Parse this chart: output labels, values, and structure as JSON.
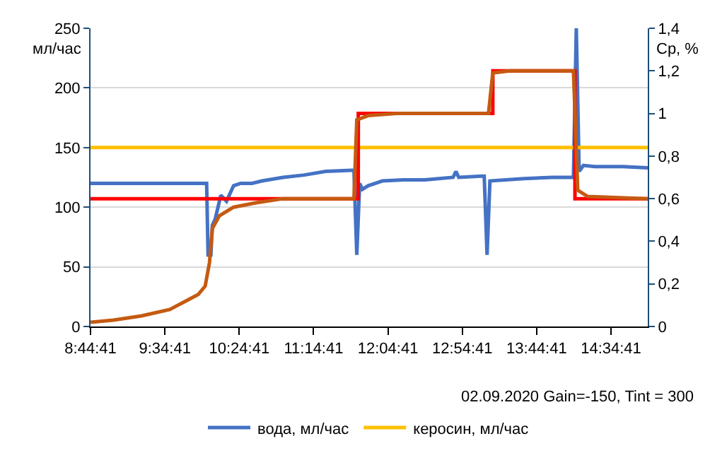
{
  "chart_data": {
    "type": "line",
    "ylabel": "мл/час",
    "y2label": "Cp, %",
    "annotations": [
      "02.09.2020 Gain=-150, Tint = 300"
    ],
    "xlim": [
      8.7447,
      14.99
    ],
    "xticks": [
      {
        "value": 8.7447,
        "label": "8:44:41"
      },
      {
        "value": 9.5781,
        "label": "9:34:41"
      },
      {
        "value": 10.4114,
        "label": "10:24:41"
      },
      {
        "value": 11.2447,
        "label": "11:14:41"
      },
      {
        "value": 12.0781,
        "label": "12:04:41"
      },
      {
        "value": 12.9114,
        "label": "12:54:41"
      },
      {
        "value": 13.7447,
        "label": "13:44:41"
      },
      {
        "value": 14.5781,
        "label": "14:34:41"
      }
    ],
    "ylim": [
      0,
      250
    ],
    "yticks": [
      0,
      50,
      100,
      150,
      200,
      250
    ],
    "y2lim": [
      0,
      1.4
    ],
    "y2ticks": [
      {
        "value": 0,
        "label": "0"
      },
      {
        "value": 0.2,
        "label": "0,2"
      },
      {
        "value": 0.4,
        "label": "0,4"
      },
      {
        "value": 0.6,
        "label": "0,6"
      },
      {
        "value": 0.8,
        "label": "0,8"
      },
      {
        "value": 1,
        "label": "1"
      },
      {
        "value": 1.2,
        "label": "1,2"
      },
      {
        "value": 1.4,
        "label": "1,4"
      }
    ],
    "grid": "y",
    "legend": "bottom",
    "marker": "none",
    "line_style": "solid",
    "series": [
      {
        "name": "вода, мл/час",
        "color": "#4472c4",
        "x": [
          8.745,
          10.046,
          10.062,
          10.094,
          10.11,
          10.142,
          10.205,
          10.269,
          10.348,
          10.427,
          10.554,
          10.666,
          10.903,
          11.142,
          11.38,
          11.665,
          11.697,
          11.729,
          11.761,
          11.792,
          11.856,
          12.015,
          12.253,
          12.491,
          12.808,
          12.84,
          12.872,
          13.126,
          13.157,
          13.189,
          13.221,
          13.602,
          13.919,
          14.157,
          14.189,
          14.221,
          14.269,
          14.396,
          14.713,
          14.99
        ],
        "values": [
          120,
          120,
          60,
          60,
          85,
          90,
          110,
          105,
          118,
          120,
          120,
          122,
          125,
          127,
          130,
          131,
          131,
          60,
          120,
          115,
          118,
          122,
          123,
          123,
          125,
          130,
          125,
          126,
          126,
          60,
          122,
          124,
          125,
          125,
          250,
          130,
          135,
          134,
          134,
          133
        ]
      },
      {
        "name": "керосин, мл/час",
        "color": "#ffc000",
        "x": [
          8.745,
          14.99
        ],
        "values": [
          150,
          150
        ]
      },
      {
        "color": "#ff0000",
        "axis": "y2",
        "x": [
          8.745,
          11.745,
          11.746,
          13.253,
          13.254,
          14.173,
          14.174,
          14.99
        ],
        "values": [
          0.6,
          0.6,
          1.0,
          1.0,
          1.2,
          1.2,
          0.6,
          0.6
        ]
      },
      {
        "color": "#c55a11",
        "axis": "y2",
        "x": [
          8.745,
          9.0,
          9.316,
          9.634,
          9.951,
          10.03,
          10.078,
          10.11,
          10.189,
          10.348,
          10.586,
          10.903,
          11.697,
          11.729,
          11.856,
          12.174,
          13.205,
          13.253,
          13.443,
          14.157,
          14.205,
          14.316,
          14.99
        ],
        "values": [
          0.02,
          0.03,
          0.05,
          0.08,
          0.15,
          0.19,
          0.3,
          0.46,
          0.52,
          0.56,
          0.58,
          0.6,
          0.6,
          0.97,
          0.99,
          1.0,
          1.0,
          1.19,
          1.2,
          1.2,
          0.64,
          0.61,
          0.6
        ]
      }
    ]
  }
}
